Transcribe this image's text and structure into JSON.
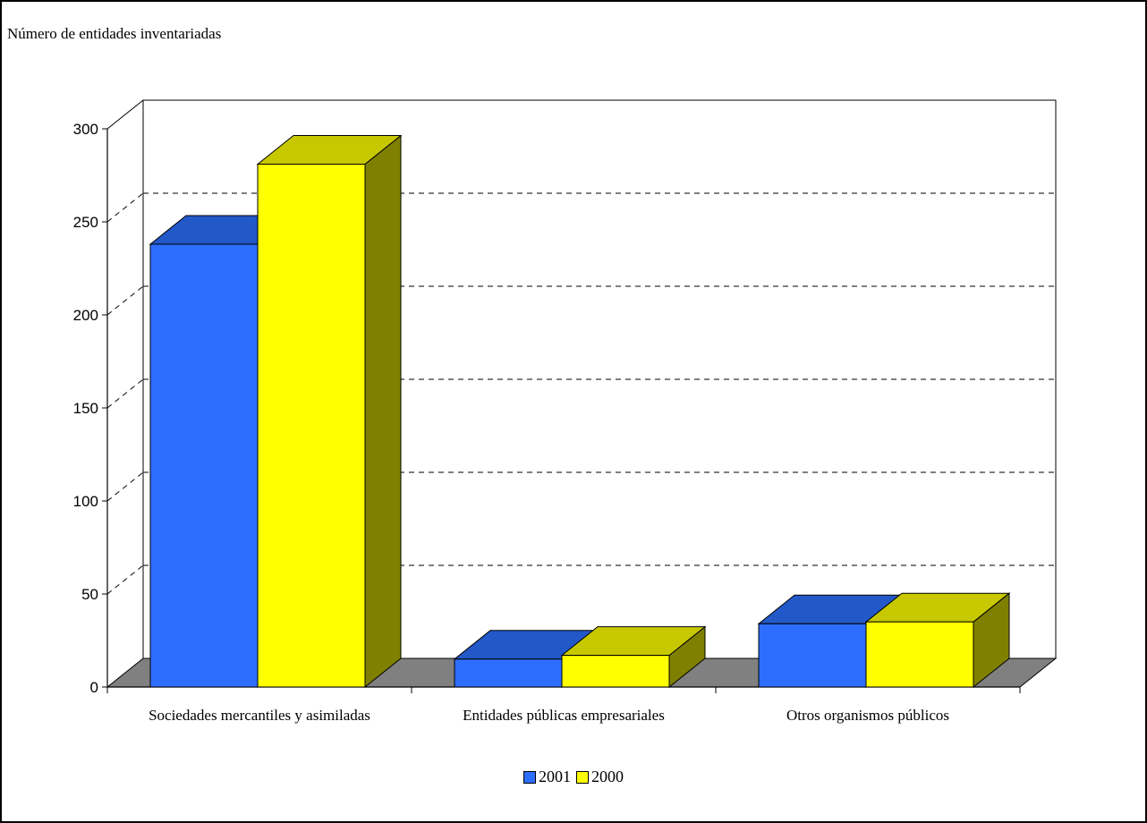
{
  "chart_data": {
    "type": "bar",
    "title": "",
    "ylabel": "Número de entidades inventariadas",
    "xlabel": "",
    "categories": [
      "Sociedades mercantiles y asimiladas",
      "Entidades públicas empresariales",
      "Otros organismos públicos"
    ],
    "series": [
      {
        "name": "2001",
        "values": [
          238,
          15,
          34
        ],
        "color": "#2E6EFF",
        "top_color": "#2358C8",
        "side_color": "#1B47A8"
      },
      {
        "name": "2000",
        "values": [
          281,
          17,
          35
        ],
        "color": "#FFFF00",
        "top_color": "#C8C800",
        "side_color": "#808000"
      }
    ],
    "ylim": [
      0,
      300
    ],
    "yticks": [
      0,
      50,
      100,
      150,
      200,
      250,
      300
    ],
    "grid": true,
    "legend_position": "bottom-center"
  }
}
